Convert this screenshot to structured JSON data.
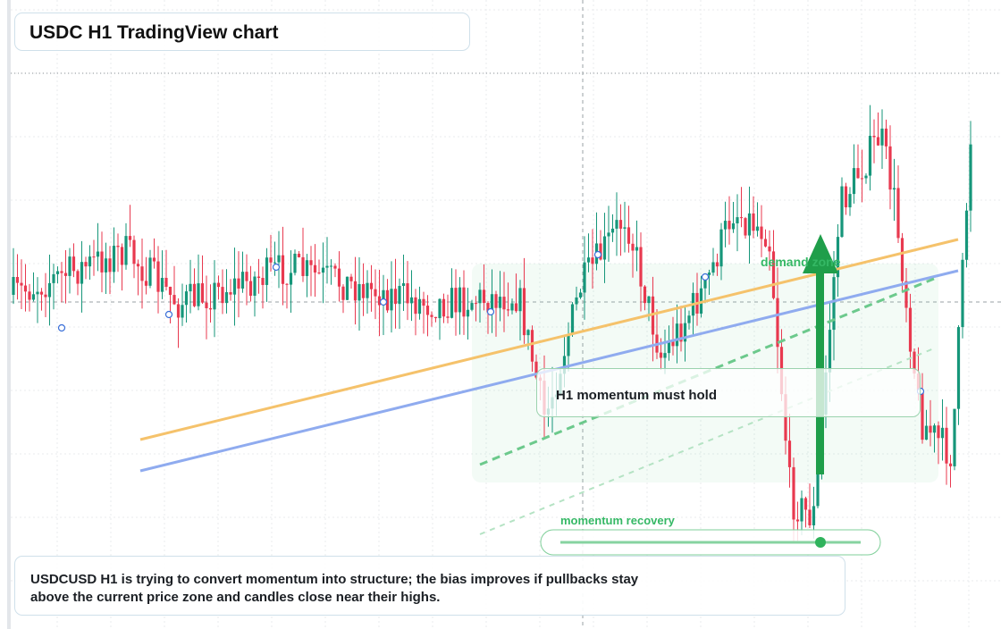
{
  "header": {
    "title": "USDC H1 TradingView chart"
  },
  "annotations": {
    "zone": "demand zone",
    "callout": "H1 momentum must hold",
    "slider": "momentum recovery"
  },
  "note": {
    "text": "USDCUSD H1 is trying to convert momentum into structure; the bias improves if pullbacks stay above the current price zone and candles close near their highs."
  }
}
